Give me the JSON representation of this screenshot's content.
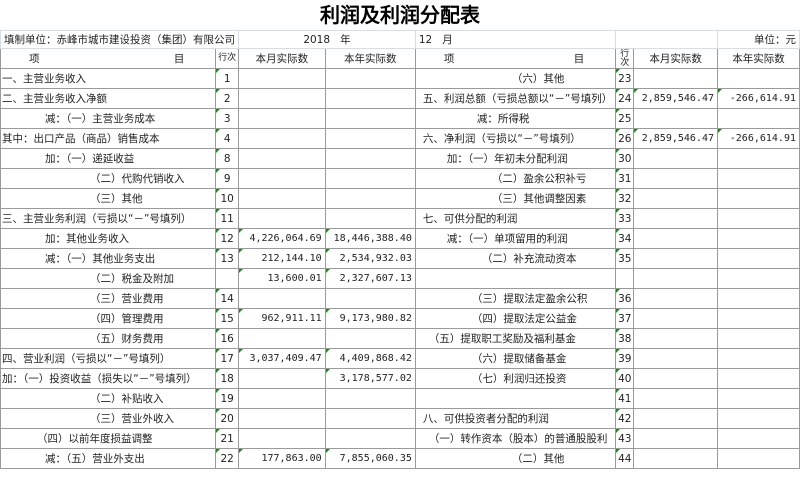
{
  "title": "利润及利润分配表",
  "info": {
    "unit_label": "填制单位：赤峰市城市建设投资（集团）有限公司",
    "year": "2018",
    "year_suffix": "年",
    "month": "12",
    "month_suffix": "月",
    "currency": "单位：元"
  },
  "headers": {
    "item_left": "项",
    "item_right": "目",
    "row_no": "行次",
    "month": "本月实际数",
    "year": "本年实际数"
  },
  "left_rows": [
    {
      "item": "一、主营业务收入",
      "no": "1",
      "month": "",
      "year": ""
    },
    {
      "item": "二、主营业务收入净额",
      "no": "2",
      "month": "",
      "year": ""
    },
    {
      "item": "减：（一）主营业务成本",
      "no": "3",
      "month": "",
      "year": ""
    },
    {
      "item": "其中：出口产品（商品）销售成本",
      "no": "4",
      "month": "",
      "year": ""
    },
    {
      "item": "加：（一）递延收益",
      "no": "8",
      "month": "",
      "year": ""
    },
    {
      "item": "（二）代购代销收入",
      "no": "9",
      "month": "",
      "year": ""
    },
    {
      "item": "（三）其他",
      "no": "10",
      "month": "",
      "year": ""
    },
    {
      "item": "三、主营业务利润（亏损以“－”号填列）",
      "no": "11",
      "month": "",
      "year": ""
    },
    {
      "item": "加：其他业务收入",
      "no": "12",
      "month": "4,226,064.69",
      "year": "18,446,388.40"
    },
    {
      "item": "减：（一）其他业务支出",
      "no": "13",
      "month": "212,144.10",
      "year": "2,534,932.03"
    },
    {
      "item": "（二）税金及附加",
      "no": "",
      "month": "13,600.01",
      "year": "2,327,607.13"
    },
    {
      "item": "（三）营业费用",
      "no": "14",
      "month": "",
      "year": ""
    },
    {
      "item": "（四）管理费用",
      "no": "15",
      "month": "962,911.11",
      "year": "9,173,980.82"
    },
    {
      "item": "（五）财务费用",
      "no": "16",
      "month": "",
      "year": ""
    },
    {
      "item": "四、营业利润（亏损以“－”号填列）",
      "no": "17",
      "month": "3,037,409.47",
      "year": "4,409,868.42"
    },
    {
      "item": "加：（一）投资收益（损失以“－”号填列）",
      "no": "18",
      "month": "",
      "year": "3,178,577.02"
    },
    {
      "item": "（二）补贴收入",
      "no": "19",
      "month": "",
      "year": ""
    },
    {
      "item": "（三）营业外收入",
      "no": "20",
      "month": "",
      "year": ""
    },
    {
      "item": "（四）以前年度损益调整",
      "no": "21",
      "month": "",
      "year": ""
    },
    {
      "item": "减：（五）营业外支出",
      "no": "22",
      "month": "177,863.00",
      "year": "7,855,060.35"
    }
  ],
  "right_rows": [
    {
      "item": "（六）其他",
      "no": "23",
      "month": "",
      "year": ""
    },
    {
      "item": "五、利润总额（亏损总额以“－”号填列）",
      "no": "24",
      "month": "2,859,546.47",
      "year": "-266,614.91"
    },
    {
      "item": "减：所得税",
      "no": "25",
      "month": "",
      "year": ""
    },
    {
      "item": "六、净利润（亏损以“－”号填列）",
      "no": "26",
      "month": "2,859,546.47",
      "year": "-266,614.91"
    },
    {
      "item": "加：（一）年初未分配利润",
      "no": "30",
      "month": "",
      "year": ""
    },
    {
      "item": "（二）盈余公积补亏",
      "no": "31",
      "month": "",
      "year": ""
    },
    {
      "item": "（三）其他调整因素",
      "no": "32",
      "month": "",
      "year": ""
    },
    {
      "item": "七、可供分配的利润",
      "no": "33",
      "month": "",
      "year": ""
    },
    {
      "item": "减：（一）单项留用的利润",
      "no": "34",
      "month": "",
      "year": ""
    },
    {
      "item": "（二）补充流动资本",
      "no": "35",
      "month": "",
      "year": ""
    },
    {
      "item": "",
      "no": "",
      "month": "",
      "year": ""
    },
    {
      "item": "（三）提取法定盈余公积",
      "no": "36",
      "month": "",
      "year": ""
    },
    {
      "item": "（四）提取法定公益金",
      "no": "37",
      "month": "",
      "year": ""
    },
    {
      "item": "（五）提取职工奖励及福利基金",
      "no": "38",
      "month": "",
      "year": ""
    },
    {
      "item": "（六）提取储备基金",
      "no": "39",
      "month": "",
      "year": ""
    },
    {
      "item": "（七）利润归还投资",
      "no": "40",
      "month": "",
      "year": ""
    },
    {
      "item": "",
      "no": "41",
      "month": "",
      "year": ""
    },
    {
      "item": "八、可供投资者分配的利润",
      "no": "42",
      "month": "",
      "year": ""
    },
    {
      "item": "（一）转作资本（股本）的普通股股利",
      "no": "43",
      "month": "",
      "year": ""
    },
    {
      "item": "（二）其他",
      "no": "44",
      "month": "",
      "year": ""
    }
  ]
}
